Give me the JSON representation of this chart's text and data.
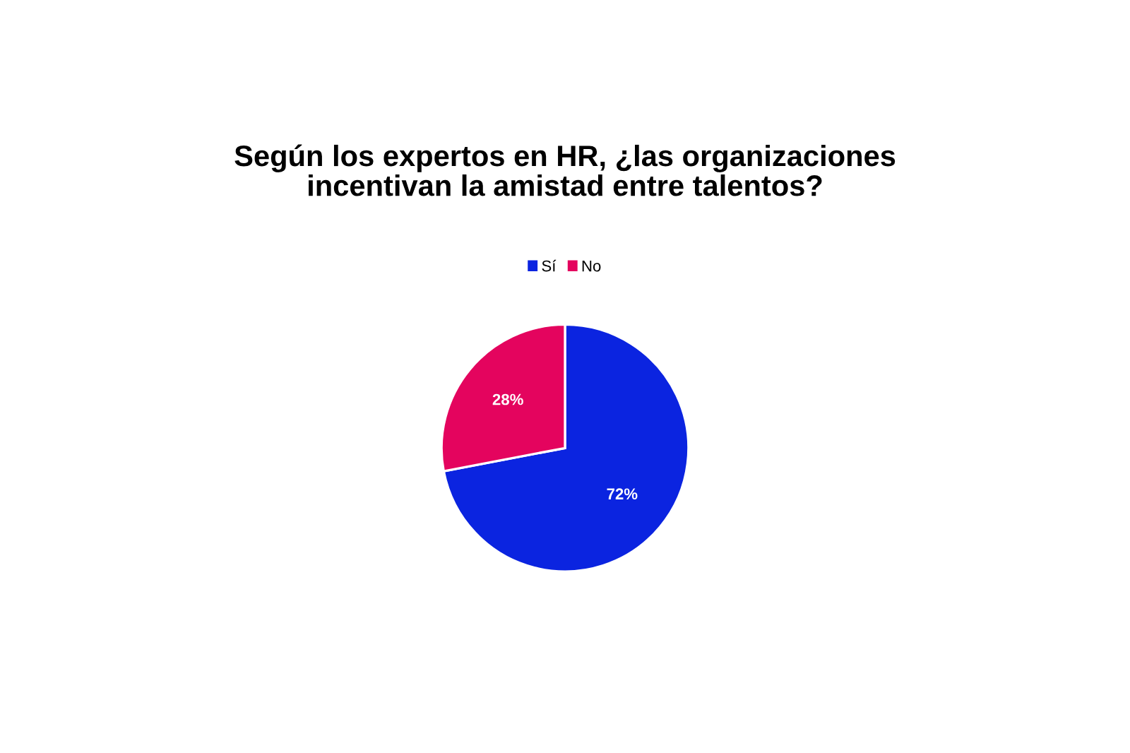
{
  "chart_data": {
    "type": "pie",
    "title": "Según los expertos en HR, ¿las organizaciones\nincentivan la amistad entre talentos?",
    "categories": [
      "Sí",
      "No"
    ],
    "values": [
      72,
      28
    ],
    "colors": [
      "#0b24e0",
      "#e4045e"
    ],
    "value_labels": [
      "72%",
      "28%"
    ],
    "legend": "top"
  }
}
